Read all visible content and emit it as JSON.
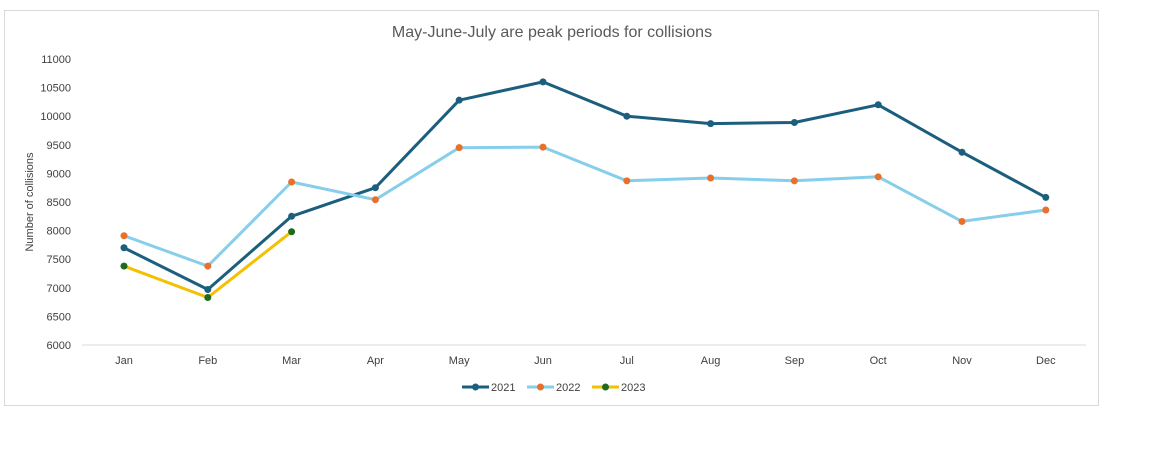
{
  "chart_data": {
    "type": "line",
    "title": "May-June-July are peak periods for collisions",
    "xlabel": "",
    "ylabel": "Number of collisions",
    "categories": [
      "Jan",
      "Feb",
      "Mar",
      "Apr",
      "May",
      "Jun",
      "Jul",
      "Aug",
      "Sep",
      "Oct",
      "Nov",
      "Dec"
    ],
    "ylim": [
      6000,
      11000
    ],
    "yticks": [
      "6000",
      "6500",
      "7000",
      "7500",
      "8000",
      "8500",
      "9000",
      "9500",
      "10000",
      "10500",
      "11000"
    ],
    "grid": false,
    "legend_position": "bottom",
    "series": [
      {
        "name": "2021",
        "color": "#1b5e7e",
        "marker_color": "#1b5e7e",
        "values": [
          7700,
          6970,
          8250,
          8750,
          10280,
          10600,
          10000,
          9870,
          9890,
          10200,
          9370,
          8580
        ]
      },
      {
        "name": "2022",
        "color": "#87ceeb",
        "marker_color": "#e8702a",
        "values": [
          7910,
          7380,
          8850,
          8540,
          9450,
          9460,
          8870,
          8920,
          8870,
          8940,
          8160,
          8360
        ]
      },
      {
        "name": "2023",
        "color": "#f5c000",
        "marker_color": "#1e6b1e",
        "values": [
          7380,
          6830,
          7980,
          null,
          null,
          null,
          null,
          null,
          null,
          null,
          null,
          null
        ]
      }
    ]
  }
}
